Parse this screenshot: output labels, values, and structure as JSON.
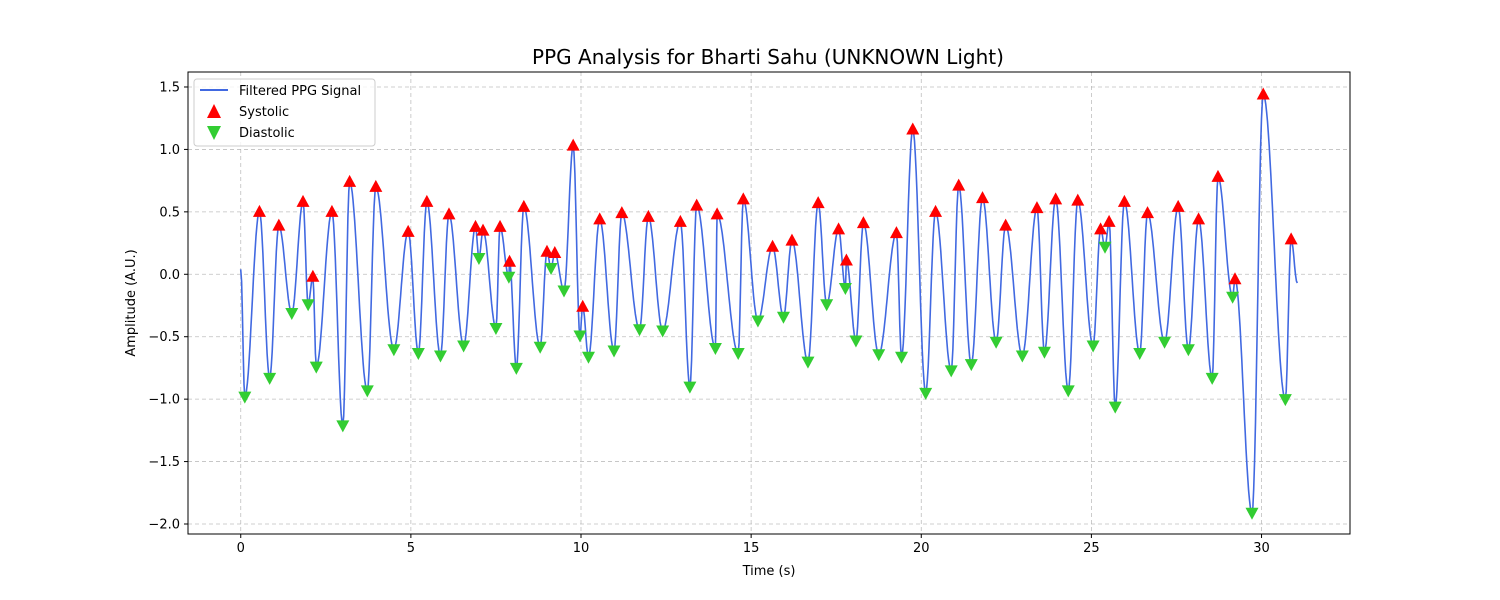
{
  "chart_data": {
    "type": "line",
    "title": "PPG Analysis for Bharti Sahu (UNKNOWN Light)",
    "xlabel": "Time (s)",
    "ylabel": "Amplitude (A.U.)",
    "xlim": [
      -1.55,
      32.6
    ],
    "ylim": [
      -2.08,
      1.62
    ],
    "x_ticks": [
      0,
      5,
      10,
      15,
      20,
      25,
      30
    ],
    "y_ticks": [
      -2.0,
      -1.5,
      -1.0,
      -0.5,
      0.0,
      0.5,
      1.0,
      1.5
    ],
    "x_tick_labels": [
      "0",
      "5",
      "10",
      "15",
      "20",
      "25",
      "30"
    ],
    "y_tick_labels": [
      "−2.0",
      "−1.5",
      "−1.0",
      "−0.5",
      "0.0",
      "0.5",
      "1.0",
      "1.5"
    ],
    "grid": true,
    "legend_position": "top-left",
    "colors": {
      "line": "#4169E1",
      "systolic": "#FF0000",
      "diastolic": "#32CD32"
    },
    "series": [
      {
        "name": "Filtered PPG Signal",
        "kind": "line"
      },
      {
        "name": "Systolic",
        "kind": "marker-up"
      },
      {
        "name": "Diastolic",
        "kind": "marker-down"
      }
    ],
    "systolic": [
      [
        0.55,
        0.5
      ],
      [
        1.12,
        0.39
      ],
      [
        1.83,
        0.58
      ],
      [
        2.12,
        -0.02
      ],
      [
        2.68,
        0.5
      ],
      [
        3.2,
        0.74
      ],
      [
        3.97,
        0.7
      ],
      [
        4.92,
        0.34
      ],
      [
        5.47,
        0.58
      ],
      [
        6.12,
        0.48
      ],
      [
        6.9,
        0.38
      ],
      [
        7.12,
        0.35
      ],
      [
        7.62,
        0.38
      ],
      [
        7.9,
        0.1
      ],
      [
        8.32,
        0.54
      ],
      [
        9.0,
        0.18
      ],
      [
        9.23,
        0.17
      ],
      [
        9.77,
        1.03
      ],
      [
        10.05,
        -0.26
      ],
      [
        10.55,
        0.44
      ],
      [
        11.2,
        0.49
      ],
      [
        11.98,
        0.46
      ],
      [
        12.92,
        0.42
      ],
      [
        13.4,
        0.55
      ],
      [
        14.0,
        0.48
      ],
      [
        14.77,
        0.6
      ],
      [
        15.63,
        0.22
      ],
      [
        16.2,
        0.27
      ],
      [
        16.97,
        0.57
      ],
      [
        17.57,
        0.36
      ],
      [
        17.8,
        0.11
      ],
      [
        18.3,
        0.41
      ],
      [
        19.27,
        0.33
      ],
      [
        19.75,
        1.16
      ],
      [
        20.42,
        0.5
      ],
      [
        21.1,
        0.71
      ],
      [
        21.8,
        0.61
      ],
      [
        22.48,
        0.39
      ],
      [
        23.4,
        0.53
      ],
      [
        23.95,
        0.6
      ],
      [
        24.6,
        0.59
      ],
      [
        25.27,
        0.36
      ],
      [
        25.52,
        0.42
      ],
      [
        25.97,
        0.58
      ],
      [
        26.65,
        0.49
      ],
      [
        27.55,
        0.54
      ],
      [
        28.15,
        0.44
      ],
      [
        28.72,
        0.78
      ],
      [
        29.22,
        -0.04
      ],
      [
        30.05,
        1.44
      ],
      [
        30.87,
        0.28
      ]
    ],
    "diastolic": [
      [
        0.12,
        -0.98
      ],
      [
        0.85,
        -0.83
      ],
      [
        1.5,
        -0.31
      ],
      [
        1.98,
        -0.24
      ],
      [
        2.22,
        -0.74
      ],
      [
        3.0,
        -1.21
      ],
      [
        3.72,
        -0.93
      ],
      [
        4.5,
        -0.6
      ],
      [
        5.22,
        -0.63
      ],
      [
        5.87,
        -0.65
      ],
      [
        6.55,
        -0.57
      ],
      [
        7.0,
        0.13
      ],
      [
        7.5,
        -0.43
      ],
      [
        7.88,
        -0.02
      ],
      [
        8.1,
        -0.75
      ],
      [
        8.8,
        -0.58
      ],
      [
        9.12,
        0.05
      ],
      [
        9.5,
        -0.13
      ],
      [
        9.97,
        -0.49
      ],
      [
        10.22,
        -0.66
      ],
      [
        10.97,
        -0.61
      ],
      [
        11.72,
        -0.44
      ],
      [
        12.4,
        -0.45
      ],
      [
        13.2,
        -0.9
      ],
      [
        13.95,
        -0.59
      ],
      [
        14.62,
        -0.63
      ],
      [
        15.2,
        -0.37
      ],
      [
        15.95,
        -0.34
      ],
      [
        16.67,
        -0.7
      ],
      [
        17.22,
        -0.24
      ],
      [
        17.77,
        -0.11
      ],
      [
        18.08,
        -0.53
      ],
      [
        18.75,
        -0.64
      ],
      [
        19.42,
        -0.66
      ],
      [
        20.13,
        -0.95
      ],
      [
        20.88,
        -0.77
      ],
      [
        21.47,
        -0.72
      ],
      [
        22.2,
        -0.54
      ],
      [
        22.97,
        -0.65
      ],
      [
        23.62,
        -0.62
      ],
      [
        24.32,
        -0.93
      ],
      [
        25.05,
        -0.57
      ],
      [
        25.4,
        0.22
      ],
      [
        25.7,
        -1.06
      ],
      [
        26.42,
        -0.63
      ],
      [
        27.15,
        -0.54
      ],
      [
        27.85,
        -0.6
      ],
      [
        28.55,
        -0.83
      ],
      [
        29.15,
        -0.18
      ],
      [
        29.72,
        -1.91
      ],
      [
        30.7,
        -1.0
      ]
    ]
  }
}
